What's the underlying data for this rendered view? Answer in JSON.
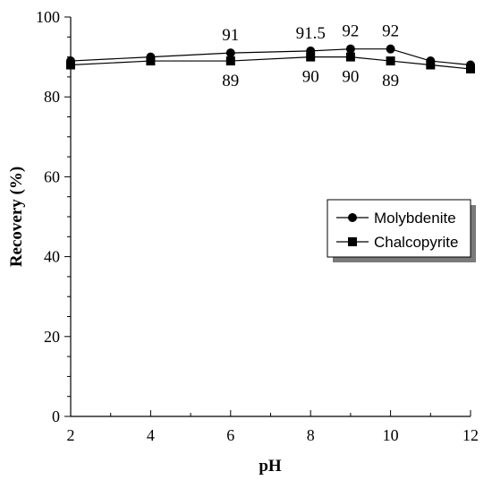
{
  "chart_data": {
    "type": "line",
    "xlabel": "pH",
    "ylabel": "Recovery (%)",
    "xlim": [
      2,
      12
    ],
    "ylim": [
      0,
      100
    ],
    "x_ticks": [
      2,
      4,
      6,
      8,
      10,
      12
    ],
    "y_ticks": [
      0,
      20,
      40,
      60,
      80,
      100
    ],
    "grid": false,
    "legend_position": "center-right",
    "series": [
      {
        "name": "Molybdenite",
        "marker": "circle",
        "x": [
          2,
          4,
          6,
          8,
          9,
          10,
          11,
          12
        ],
        "y": [
          89,
          90,
          91,
          91.5,
          92,
          92,
          89,
          88
        ],
        "labels": [
          {
            "x": 6,
            "text": "91"
          },
          {
            "x": 8,
            "text": "91.5"
          },
          {
            "x": 9,
            "text": "92"
          },
          {
            "x": 10,
            "text": "92"
          }
        ]
      },
      {
        "name": "Chalcopyrite",
        "marker": "square",
        "x": [
          2,
          4,
          6,
          8,
          9,
          10,
          11,
          12
        ],
        "y": [
          88,
          89,
          89,
          90,
          90,
          89,
          88,
          87
        ],
        "labels": [
          {
            "x": 6,
            "text": "89"
          },
          {
            "x": 8,
            "text": "90"
          },
          {
            "x": 9,
            "text": "90"
          },
          {
            "x": 10,
            "text": "89"
          }
        ]
      }
    ],
    "line_color": "#000000",
    "legend_shadow_color": "#7a7a7a"
  }
}
